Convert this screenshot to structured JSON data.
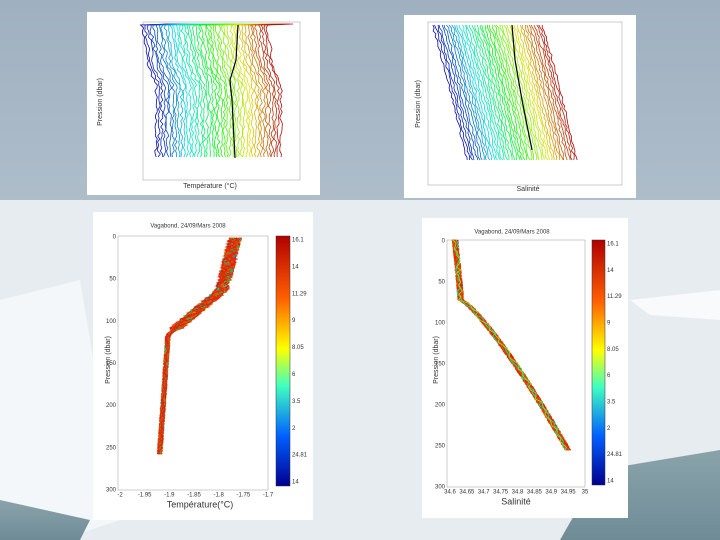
{
  "slide": {
    "panels": [
      {
        "xlabel": "Température (°C)",
        "ylabel": "Pression (dbar)"
      },
      {
        "xlabel": "Salinité",
        "ylabel": "Pression (dbar)"
      },
      {
        "title": "Vagabond, 24/09/Mars 2008",
        "xlabel": "Température(°C)",
        "ylabel": "Pression (dbar)",
        "xticks": [
          "-2",
          "-1.95",
          "-1.9",
          "-1.85",
          "-1.8",
          "-1.75",
          "-1.7"
        ],
        "yticks": [
          "0",
          "50",
          "100",
          "150",
          "200",
          "250",
          "300"
        ],
        "colorbar": [
          "16.1",
          "14",
          "11.29",
          "9",
          "8.05",
          "6",
          "3.5",
          "2",
          "24.81",
          "14"
        ]
      },
      {
        "title": "Vagabond, 24/09/Mars 2008",
        "xlabel": "Salinité",
        "ylabel": "Pression (dbar)",
        "xticks": [
          "34.6",
          "34.65",
          "34.7",
          "34.75",
          "34.8",
          "34.85",
          "34.9",
          "34.95",
          "35"
        ],
        "yticks": [
          "0",
          "50",
          "100",
          "150",
          "200",
          "250",
          "300"
        ],
        "colorbar": [
          "16.1",
          "14",
          "11.29",
          "9",
          "8.05",
          "6",
          "3.5",
          "2",
          "24.81",
          "14"
        ]
      }
    ]
  }
}
